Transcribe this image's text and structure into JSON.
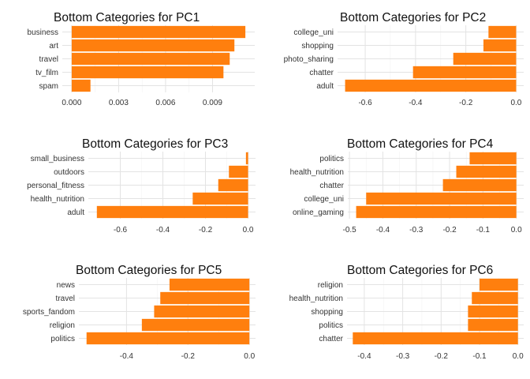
{
  "chart_data": [
    {
      "type": "bar",
      "orientation": "horizontal",
      "title": "Bottom Categories for PC1",
      "xlabel": "",
      "ylabel": "",
      "categories": [
        "business",
        "art",
        "travel",
        "tv_film",
        "spam"
      ],
      "values": [
        0.0111,
        0.0104,
        0.0101,
        0.0097,
        0.0012
      ],
      "xlim": [
        -0.0006,
        0.0117
      ],
      "xticks": [
        0,
        0.003,
        0.006,
        0.009
      ],
      "xtick_labels": [
        "0.000",
        "0.003",
        "0.006",
        "0.009"
      ],
      "bar_color": "#ff7f0e",
      "grid": true
    },
    {
      "type": "bar",
      "orientation": "horizontal",
      "title": "Bottom Categories for PC2",
      "xlabel": "",
      "ylabel": "",
      "categories": [
        "college_uni",
        "shopping",
        "photo_sharing",
        "chatter",
        "adult"
      ],
      "values": [
        -0.11,
        -0.13,
        -0.25,
        -0.41,
        -0.68
      ],
      "xlim": [
        -0.71,
        0.03
      ],
      "xticks": [
        -0.6,
        -0.4,
        -0.2,
        0.0
      ],
      "xtick_labels": [
        "-0.6",
        "-0.4",
        "-0.2",
        "0.0"
      ],
      "bar_color": "#ff7f0e",
      "grid": true
    },
    {
      "type": "bar",
      "orientation": "horizontal",
      "title": "Bottom Categories for PC3",
      "xlabel": "",
      "ylabel": "",
      "categories": [
        "small_business",
        "outdoors",
        "personal_fitness",
        "health_nutrition",
        "adult"
      ],
      "values": [
        -0.01,
        -0.09,
        -0.14,
        -0.26,
        -0.71
      ],
      "xlim": [
        -0.75,
        0.035
      ],
      "xticks": [
        -0.6,
        -0.4,
        -0.2,
        0.0
      ],
      "xtick_labels": [
        "-0.6",
        "-0.4",
        "-0.2",
        "0.0"
      ],
      "bar_color": "#ff7f0e",
      "grid": true
    },
    {
      "type": "bar",
      "orientation": "horizontal",
      "title": "Bottom Categories for PC4",
      "xlabel": "",
      "ylabel": "",
      "categories": [
        "politics",
        "health_nutrition",
        "chatter",
        "college_uni",
        "online_gaming"
      ],
      "values": [
        -0.14,
        -0.18,
        -0.22,
        -0.45,
        -0.48
      ],
      "xlim": [
        -0.505,
        0.022
      ],
      "xticks": [
        -0.5,
        -0.4,
        -0.3,
        -0.2,
        -0.1,
        0.0
      ],
      "xtick_labels": [
        "-0.5",
        "-0.4",
        "-0.3",
        "-0.2",
        "-0.1",
        "0.0"
      ],
      "bar_color": "#ff7f0e",
      "grid": true
    },
    {
      "type": "bar",
      "orientation": "horizontal",
      "title": "Bottom Categories for PC5",
      "xlabel": "",
      "ylabel": "",
      "categories": [
        "news",
        "travel",
        "sports_fandom",
        "religion",
        "politics"
      ],
      "values": [
        -0.26,
        -0.29,
        -0.31,
        -0.35,
        -0.53
      ],
      "xlim": [
        -0.555,
        0.02
      ],
      "xticks": [
        -0.4,
        -0.2,
        0.0
      ],
      "xtick_labels": [
        "-0.4",
        "-0.2",
        "0.0"
      ],
      "bar_color": "#ff7f0e",
      "grid": true
    },
    {
      "type": "bar",
      "orientation": "horizontal",
      "title": "Bottom Categories for PC6",
      "xlabel": "",
      "ylabel": "",
      "categories": [
        "religion",
        "health_nutrition",
        "shopping",
        "politics",
        "chatter"
      ],
      "values": [
        -0.1,
        -0.12,
        -0.13,
        -0.13,
        -0.43
      ],
      "xlim": [
        -0.445,
        0.015
      ],
      "xticks": [
        -0.4,
        -0.3,
        -0.2,
        -0.1,
        0.0
      ],
      "xtick_labels": [
        "-0.4",
        "-0.3",
        "-0.2",
        "-0.1",
        "0.0"
      ],
      "bar_color": "#ff7f0e",
      "grid": true
    }
  ]
}
